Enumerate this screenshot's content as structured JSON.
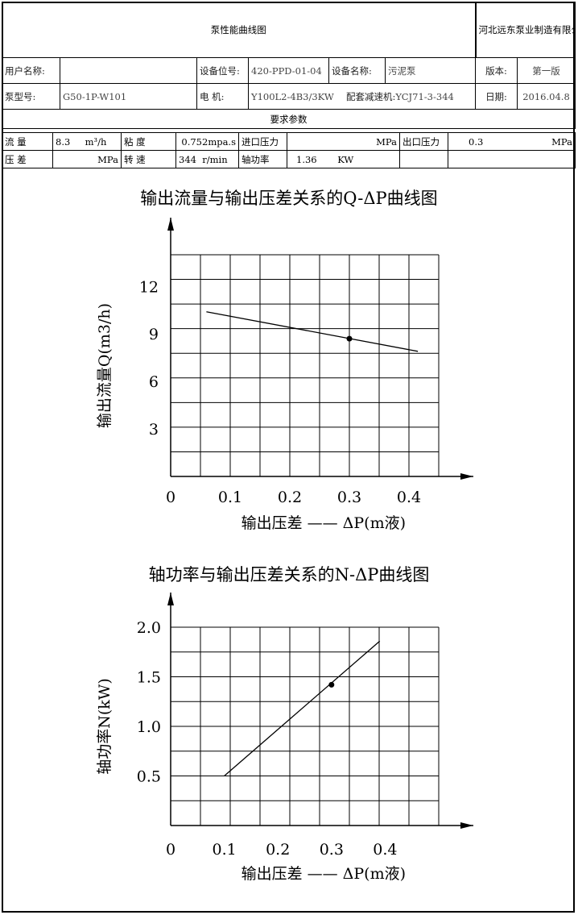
{
  "header": {
    "title": "泵性能曲线图",
    "company": "河北远东泵业制造有限公司",
    "user_name_label": "用户名称:",
    "user_name_value": "",
    "position_label": "设备位号:",
    "position_value": "420-PPD-01-04",
    "device_name_label": "设备名称:",
    "device_name_value": "污泥泵",
    "version_label": "版本:",
    "version_value": "第一版",
    "pump_model_label": "泵型号:",
    "pump_model_value": "G50-1P-W101",
    "motor_label": "电  机:",
    "motor_value": "Y100L2-4B3/3KW",
    "reducer_label": "配套减速机:",
    "reducer_value": "YCJ71-3-344",
    "date_label": "日期:",
    "date_value": "2016.04.8",
    "requirements_label": "要求参数"
  },
  "params": {
    "flow_label": "流  量",
    "flow_value": "8.3",
    "flow_unit": "m³/h",
    "viscosity_label": "粘  度",
    "viscosity_value": "0.752mpa.s",
    "inlet_pressure_label": "进口压力",
    "inlet_pressure_unit": "MPa",
    "outlet_pressure_label": "出口压力",
    "outlet_pressure_value": "0.3",
    "outlet_pressure_unit": "MPa",
    "pressure_diff_label": "压  差",
    "pressure_diff_unit": "MPa",
    "speed_label": "转  速",
    "speed_value": "344",
    "speed_unit": "r/min",
    "shaft_power_label": "轴功率",
    "shaft_power_value": "1.36",
    "shaft_power_unit": "KW"
  },
  "chart_data": [
    {
      "type": "line",
      "title": "输出流量与输出压差关系的Q-ΔP曲线图",
      "xlabel": "输出压差 ——  ΔP(m液)",
      "ylabel": "输出流量Q(m3/h)",
      "xlim": [
        0,
        0.45
      ],
      "ylim": [
        0,
        14
      ],
      "x_tick_labels": [
        "0",
        "0.1",
        "0.2",
        "0.3",
        "0.4"
      ],
      "x_tick_values": [
        0,
        0.1,
        0.2,
        0.3,
        0.4
      ],
      "y_tick_labels": [
        "3",
        "6",
        "9",
        "12"
      ],
      "y_tick_values": [
        3,
        6,
        9,
        12
      ],
      "grid": true,
      "series": [
        {
          "x": [
            0.06,
            0.415
          ],
          "y": [
            10.4,
            7.9
          ]
        }
      ],
      "points": [
        {
          "x": 0.3,
          "y": 8.7
        }
      ]
    },
    {
      "type": "line",
      "title": "轴功率与输出压差关系的N-ΔP曲线图",
      "xlabel": "输出压差 ——  ΔP(m液)",
      "ylabel": "轴功率N(kW)",
      "xlim": [
        0,
        0.5
      ],
      "ylim": [
        0,
        2.0
      ],
      "x_tick_labels": [
        "0",
        "0.1",
        "0.2",
        "0.3",
        "0.4"
      ],
      "x_tick_values": [
        0,
        0.1,
        0.2,
        0.3,
        0.4
      ],
      "y_tick_labels": [
        "0.5",
        "1.0",
        "1.5",
        "2.0"
      ],
      "y_tick_values": [
        0.5,
        1.0,
        1.5,
        2.0
      ],
      "grid": true,
      "series": [
        {
          "x": [
            0.1,
            0.39
          ],
          "y": [
            0.5,
            1.86
          ]
        }
      ],
      "points": [
        {
          "x": 0.3,
          "y": 1.42
        }
      ]
    }
  ]
}
